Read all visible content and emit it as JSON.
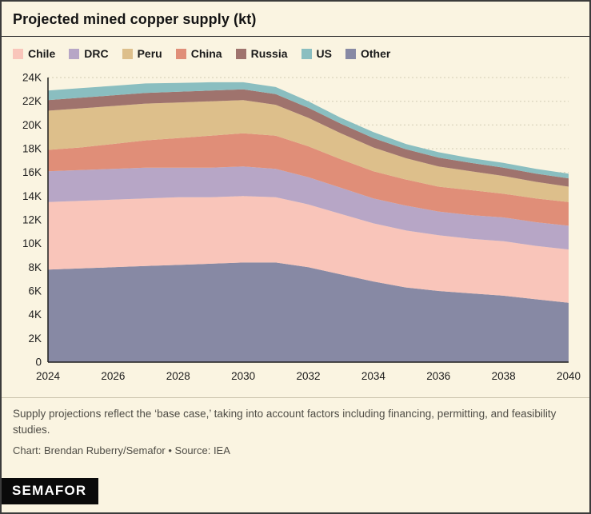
{
  "header": {
    "title": "Projected mined copper supply (kt)"
  },
  "chart_data": {
    "type": "area",
    "stacked": true,
    "title": "Projected mined copper supply (kt)",
    "xlabel": "",
    "ylabel": "",
    "x": [
      2024,
      2025,
      2026,
      2027,
      2028,
      2029,
      2030,
      2031,
      2032,
      2033,
      2034,
      2035,
      2036,
      2037,
      2038,
      2039,
      2040
    ],
    "x_tick_every": 2,
    "ylim": [
      0,
      24000
    ],
    "ytick_step": 2000,
    "grid": "dotted-horizontal",
    "legend_position": "top",
    "legend": [
      "Chile",
      "DRC",
      "Peru",
      "China",
      "Russia",
      "US",
      "Other"
    ],
    "series": [
      {
        "name": "Other",
        "color": "#8789A4",
        "values": [
          7800,
          7900,
          8000,
          8100,
          8200,
          8300,
          8400,
          8400,
          8000,
          7400,
          6800,
          6300,
          6000,
          5800,
          5600,
          5300,
          5000
        ]
      },
      {
        "name": "Chile",
        "color": "#F9C5BA",
        "values": [
          5700,
          5700,
          5700,
          5700,
          5700,
          5600,
          5600,
          5500,
          5300,
          5100,
          4900,
          4800,
          4700,
          4600,
          4600,
          4500,
          4500
        ]
      },
      {
        "name": "DRC",
        "color": "#B7A6C6",
        "values": [
          2600,
          2600,
          2600,
          2600,
          2500,
          2500,
          2500,
          2400,
          2300,
          2200,
          2100,
          2100,
          2000,
          2000,
          2000,
          2000,
          2000
        ]
      },
      {
        "name": "China",
        "color": "#E08E78",
        "values": [
          1800,
          1900,
          2100,
          2300,
          2500,
          2700,
          2800,
          2800,
          2600,
          2400,
          2300,
          2200,
          2100,
          2100,
          2000,
          2000,
          2000
        ]
      },
      {
        "name": "Peru",
        "color": "#DDBF8B",
        "values": [
          3300,
          3300,
          3200,
          3100,
          3000,
          2900,
          2800,
          2600,
          2400,
          2200,
          2000,
          1800,
          1700,
          1600,
          1500,
          1400,
          1300
        ]
      },
      {
        "name": "Russia",
        "color": "#9F736D",
        "values": [
          900,
          900,
          900,
          900,
          900,
          900,
          900,
          900,
          850,
          800,
          800,
          750,
          750,
          700,
          700,
          700,
          700
        ]
      },
      {
        "name": "US",
        "color": "#8ABEC0",
        "values": [
          800,
          800,
          800,
          800,
          750,
          700,
          600,
          600,
          550,
          500,
          500,
          450,
          450,
          400,
          400,
          400,
          400
        ]
      }
    ]
  },
  "colors": {
    "background": "#FAF4E1",
    "grid": "#d2cbb4",
    "axis": "#1e1e1e",
    "axis_text": "#1c1c1c",
    "border": "#3b3b3b"
  },
  "footer": {
    "note": "Supply projections reflect the ‘base case,’ taking into account factors including financing, permitting, and feasibility studies.",
    "credit": "Chart: Brendan Ruberry/Semafor • Source: IEA",
    "logo": "SEMAFOR"
  }
}
